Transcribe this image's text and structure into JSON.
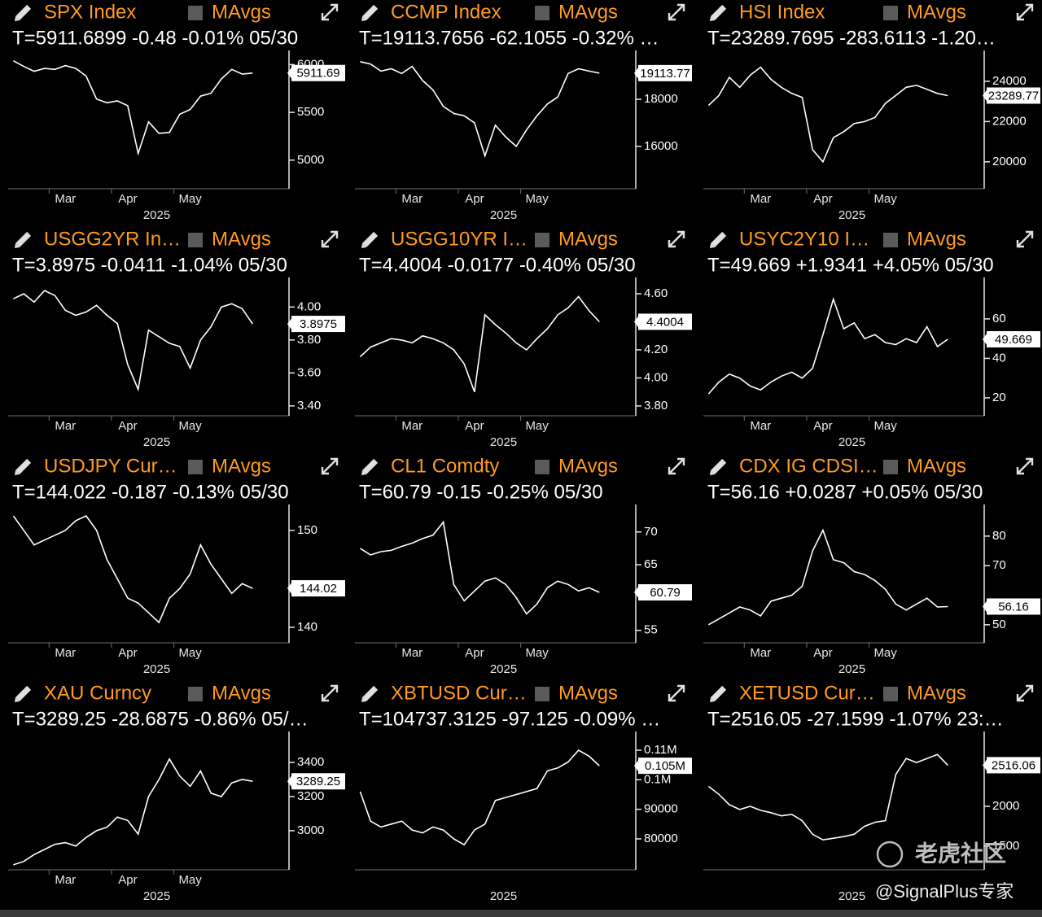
{
  "chart_data": [
    {
      "type": "line",
      "title": "SPX Index",
      "overlay_label": "MAvgs",
      "subtitle": "T=5911.6899 -0.48 -0.01% 05/30",
      "subtitle_color": "#ff2b2b",
      "color": "#ffffff",
      "categories": [
        null,
        null,
        null,
        null,
        null,
        "Mar",
        null,
        null,
        null,
        null,
        null,
        "Apr",
        null,
        null,
        null,
        null,
        null,
        "May",
        null,
        null,
        null,
        null,
        null,
        null
      ],
      "values": [
        6040,
        5980,
        5930,
        5960,
        5950,
        5990,
        5960,
        5880,
        5640,
        5600,
        5620,
        5570,
        5070,
        5400,
        5280,
        5290,
        5480,
        5530,
        5670,
        5700,
        5850,
        5950,
        5900,
        5911.69
      ],
      "ylim": [
        4700,
        6080
      ],
      "yticks": [
        6000,
        5500,
        5000
      ],
      "last_value": 5911.69,
      "xlabel": "2025"
    },
    {
      "type": "line",
      "title": "CCMP Index",
      "overlay_label": "MAvgs",
      "subtitle": "T=19113.7656 -62.1055 -0.32% …",
      "subtitle_color": "#ff2b2b",
      "color": "#ffffff",
      "categories": [
        null,
        null,
        null,
        null,
        null,
        "Mar",
        null,
        null,
        null,
        null,
        null,
        "Apr",
        null,
        null,
        null,
        null,
        null,
        "May",
        null,
        null,
        null,
        null,
        null,
        null
      ],
      "values": [
        19600,
        19500,
        19200,
        19300,
        19100,
        19400,
        18800,
        18400,
        17700,
        17400,
        17300,
        17000,
        15600,
        16900,
        16400,
        16000,
        16700,
        17300,
        17800,
        18100,
        19100,
        19300,
        19200,
        19113.77
      ],
      "ylim": [
        14200,
        19800
      ],
      "yticks": [
        18000,
        16000
      ],
      "last_value": 19113.77,
      "xlabel": "2025"
    },
    {
      "type": "line",
      "title": "HSI Index",
      "overlay_label": "MAvgs",
      "subtitle": "T=23289.7695 -283.6113 -1.20…",
      "subtitle_color": "#ff2b2b",
      "color": "#ffffff",
      "categories": [
        null,
        null,
        null,
        null,
        null,
        "Mar",
        null,
        null,
        null,
        null,
        null,
        "Apr",
        null,
        null,
        null,
        null,
        null,
        "May",
        null,
        null,
        null,
        null,
        null,
        null
      ],
      "values": [
        22800,
        23300,
        24200,
        23700,
        24300,
        24700,
        24100,
        23700,
        23400,
        23200,
        20600,
        20000,
        21200,
        21500,
        21900,
        22000,
        22200,
        22900,
        23300,
        23700,
        23800,
        23600,
        23400,
        23289.77
      ],
      "ylim": [
        18660,
        25210
      ],
      "yticks": [
        24000,
        22000,
        20000
      ],
      "last_value": 23289.77,
      "xlabel": "2025"
    },
    {
      "type": "line",
      "title": "USGG2YR In…",
      "overlay_label": "MAvgs",
      "subtitle": "T=3.8975 -0.0411 -1.04% 05/30",
      "subtitle_color": "#ff2b2b",
      "color": "#ffffff",
      "categories": [
        null,
        null,
        null,
        null,
        null,
        "Mar",
        null,
        null,
        null,
        null,
        null,
        "Apr",
        null,
        null,
        null,
        null,
        null,
        "May",
        null,
        null,
        null,
        null,
        null,
        null
      ],
      "values": [
        4.05,
        4.08,
        4.03,
        4.1,
        4.07,
        3.98,
        3.95,
        3.97,
        4.01,
        3.95,
        3.9,
        3.65,
        3.5,
        3.86,
        3.82,
        3.78,
        3.76,
        3.63,
        3.8,
        3.88,
        4.0,
        4.02,
        3.99,
        3.8975
      ],
      "ylim": [
        3.34,
        4.14
      ],
      "yticks": [
        {
          "value": 4.0,
          "label": "4.00"
        },
        {
          "value": 3.8,
          "label": "3.80"
        },
        {
          "value": 3.6,
          "label": "3.60"
        },
        {
          "value": 3.4,
          "label": "3.40"
        }
      ],
      "last_value": 3.8975,
      "xlabel": "2025"
    },
    {
      "type": "line",
      "title": "USGG10YR I…",
      "overlay_label": "MAvgs",
      "subtitle": "T=4.4004 -0.0177 -0.40% 05/30",
      "subtitle_color": "#ff2b2b",
      "color": "#ffffff",
      "categories": [
        null,
        null,
        null,
        null,
        null,
        "Mar",
        null,
        null,
        null,
        null,
        null,
        "Apr",
        null,
        null,
        null,
        null,
        null,
        "May",
        null,
        null,
        null,
        null,
        null,
        null
      ],
      "values": [
        4.15,
        4.22,
        4.25,
        4.28,
        4.27,
        4.25,
        4.3,
        4.28,
        4.25,
        4.2,
        4.1,
        3.9,
        4.45,
        4.38,
        4.32,
        4.25,
        4.2,
        4.28,
        4.35,
        4.45,
        4.5,
        4.58,
        4.48,
        4.4004
      ],
      "ylim": [
        3.73,
        4.67
      ],
      "yticks": [
        {
          "value": 4.6,
          "label": "4.60"
        },
        {
          "value": 4.2,
          "label": "4.20"
        },
        {
          "value": 4.0,
          "label": "4.00"
        },
        {
          "value": 3.8,
          "label": "3.80"
        }
      ],
      "last_value": 4.4004,
      "xlabel": "2025"
    },
    {
      "type": "line",
      "title": "USYC2Y10 I…",
      "overlay_label": "MAvgs",
      "subtitle": "T=49.669 +1.9341 +4.05% 05/30",
      "subtitle_color": "#3cff3c",
      "color": "#ffffff",
      "categories": [
        null,
        null,
        null,
        null,
        null,
        "Mar",
        null,
        null,
        null,
        null,
        null,
        "Apr",
        null,
        null,
        null,
        null,
        null,
        "May",
        null,
        null,
        null,
        null,
        null,
        null
      ],
      "values": [
        22,
        28,
        32,
        30,
        26,
        24,
        28,
        31,
        33,
        30,
        35,
        52,
        70,
        55,
        58,
        50,
        52,
        48,
        47,
        50,
        48,
        56,
        46,
        49.669
      ],
      "ylim": [
        10.9,
        77.7
      ],
      "yticks": [
        60,
        40,
        20
      ],
      "last_value": 49.669,
      "xlabel": "2025"
    },
    {
      "type": "line",
      "title": "USDJPY Cur…",
      "overlay_label": "MAvgs",
      "subtitle": "T=144.022 -0.187 -0.13% 05/30",
      "subtitle_color": "#ff2b2b",
      "color": "#ffffff",
      "categories": [
        null,
        null,
        null,
        null,
        null,
        "Mar",
        null,
        null,
        null,
        null,
        null,
        "Apr",
        null,
        null,
        null,
        null,
        null,
        "May",
        null,
        null,
        null,
        null,
        null,
        null
      ],
      "values": [
        151.5,
        150,
        148.5,
        149,
        149.5,
        150,
        151,
        151.5,
        150,
        147,
        145,
        143,
        142.5,
        141.5,
        140.5,
        143,
        144,
        145.5,
        148.5,
        146.5,
        145,
        143.5,
        144.5,
        144.02
      ],
      "ylim": [
        138.4,
        152.0
      ],
      "yticks": [
        150,
        140
      ],
      "last_value": 144.02,
      "xlabel": "2025"
    },
    {
      "type": "line",
      "title": "CL1 Comdty",
      "overlay_label": "MAvgs",
      "subtitle": "T=60.79 -0.15 -0.25% 05/30",
      "subtitle_color": "#ff2b2b",
      "color": "#ffffff",
      "categories": [
        null,
        null,
        null,
        null,
        null,
        "Mar",
        null,
        null,
        null,
        null,
        null,
        "Apr",
        null,
        null,
        null,
        null,
        null,
        "May",
        null,
        null,
        null,
        null,
        null,
        null
      ],
      "values": [
        67.5,
        66.5,
        67,
        67.2,
        67.8,
        68.3,
        69,
        69.5,
        71.5,
        62,
        59.5,
        61,
        62.5,
        63,
        62,
        60,
        57.5,
        59,
        61.5,
        62.5,
        62,
        61,
        61.5,
        60.79
      ],
      "ylim": [
        53.1,
        73.2
      ],
      "yticks": [
        70,
        65,
        55
      ],
      "last_value": 60.79,
      "xlabel": "2025"
    },
    {
      "type": "line",
      "title": "CDX IG CDSI…",
      "overlay_label": "MAvgs",
      "subtitle": "T=56.16 +0.0287 +0.05% 05/30",
      "subtitle_color": "#ff2b2b",
      "color": "#ffffff",
      "categories": [
        null,
        null,
        null,
        null,
        null,
        "Mar",
        null,
        null,
        null,
        null,
        null,
        "Apr",
        null,
        null,
        null,
        null,
        null,
        "May",
        null,
        null,
        null,
        null,
        null,
        null
      ],
      "values": [
        50,
        52,
        54,
        56,
        55,
        53,
        58,
        59,
        60,
        63,
        75,
        82,
        72,
        71,
        68,
        67,
        65,
        62,
        57,
        55,
        57,
        59,
        56,
        56.16
      ],
      "ylim": [
        43.9,
        88.5
      ],
      "yticks": [
        80,
        70,
        50
      ],
      "last_value": 56.16,
      "xlabel": "2025"
    },
    {
      "type": "line",
      "title": "XAU Curncy",
      "overlay_label": "MAvgs",
      "subtitle": "T=3289.25 -28.6875 -0.86% 05/…",
      "subtitle_color": "#ff2b2b",
      "color": "#ffffff",
      "categories": [
        null,
        null,
        null,
        null,
        null,
        "Mar",
        null,
        null,
        null,
        null,
        null,
        "Apr",
        null,
        null,
        null,
        null,
        null,
        "May",
        null,
        null,
        null,
        null,
        null,
        null
      ],
      "values": [
        2800,
        2820,
        2860,
        2890,
        2920,
        2930,
        2910,
        2960,
        3000,
        3020,
        3080,
        3060,
        2980,
        3200,
        3300,
        3420,
        3320,
        3260,
        3350,
        3220,
        3200,
        3280,
        3300,
        3289.25
      ],
      "ylim": [
        2771,
        3543
      ],
      "yticks": [
        3400,
        3200,
        3000
      ],
      "last_value": 3289.25,
      "xlabel": "2025"
    },
    {
      "type": "line",
      "title": "XBTUSD Cur…",
      "overlay_label": "MAvgs",
      "subtitle": "T=104737.3125 -97.125 -0.09% …",
      "subtitle_color": "#ff2b2b",
      "color": "#ffffff",
      "categories": [
        null,
        null,
        null,
        null,
        null,
        null,
        null,
        null,
        null,
        null,
        null,
        null,
        null,
        null,
        null,
        null,
        null,
        null,
        null,
        null,
        null,
        null,
        null,
        null
      ],
      "values": [
        96000,
        86000,
        84000,
        85000,
        86000,
        83000,
        82000,
        84000,
        83000,
        80000,
        78000,
        83000,
        85000,
        93000,
        94000,
        95000,
        96000,
        97000,
        103000,
        104000,
        106000,
        110000,
        108000,
        104737.31
      ],
      "ylim": [
        69530,
        114130
      ],
      "yticks": [
        {
          "value": 110000,
          "label": "0.11M"
        },
        {
          "value": 100000,
          "label": "0.1M"
        },
        90000,
        80000
      ],
      "last_value": {
        "value": 104737.31,
        "label": "0.105M"
      },
      "xlabel": "2025"
    },
    {
      "type": "line",
      "title": "XETUSD Cur…",
      "overlay_label": "MAvgs",
      "subtitle": "T=2516.05 -27.1599 -1.07% 23:…",
      "subtitle_color": "#ff2b2b",
      "color": "#ffffff",
      "categories": [
        null,
        null,
        null,
        null,
        null,
        null,
        null,
        null,
        null,
        null,
        null,
        null,
        null,
        null,
        null,
        null,
        null,
        null,
        null,
        null,
        null,
        null,
        null,
        null
      ],
      "values": [
        2250,
        2150,
        2020,
        1960,
        2000,
        1950,
        1920,
        1880,
        1900,
        1820,
        1650,
        1580,
        1600,
        1620,
        1650,
        1750,
        1800,
        1820,
        2400,
        2600,
        2550,
        2600,
        2650,
        2516.06
      ],
      "ylim": [
        1204,
        2857
      ],
      "yticks": [
        2000,
        1500
      ],
      "last_value": 2516.06,
      "xlabel": "2025"
    }
  ],
  "watermark": {
    "brand": "老虎社区",
    "author": "@SignalPlus专家"
  }
}
